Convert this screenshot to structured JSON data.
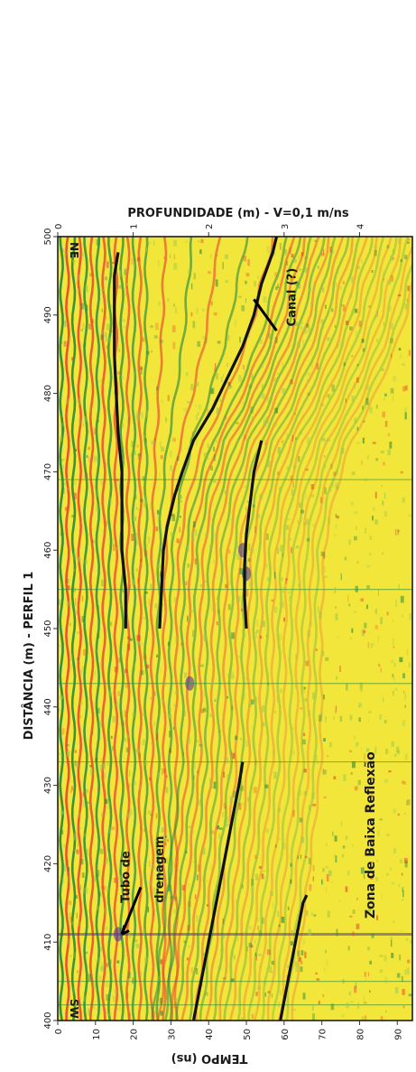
{
  "chart_data": {
    "type": "heatmap",
    "title": "PROFUNDIDADE (m) - V=0,1 m/ns",
    "depth_axis": {
      "label": "PROFUNDIDADE (m) - V=0,1 m/ns",
      "ticks": [
        "0",
        "1",
        "2",
        "3",
        "4"
      ],
      "range": [
        0,
        4.7
      ]
    },
    "distance_axis": {
      "label": "DISTÂNCIA (m) - PERFIL 1",
      "ticks": [
        "400",
        "410",
        "420",
        "430",
        "440",
        "450",
        "460",
        "470",
        "480",
        "490",
        "500"
      ],
      "range": [
        400,
        500
      ]
    },
    "time_axis": {
      "label": "TEMPO (ns)",
      "ticks": [
        "0",
        "10",
        "20",
        "30",
        "40",
        "50",
        "60",
        "70",
        "80",
        "90"
      ],
      "range": [
        0,
        94
      ]
    },
    "ends": {
      "start": "SW",
      "end": "NE"
    },
    "annotations": {
      "canal": "Canal (?)",
      "tubo_line1": "Tubo de",
      "tubo_line2": "drenagem",
      "zona": "Zona de Baixa Reflexão"
    },
    "interpreted_horizons": [
      {
        "name": "h1",
        "points": [
          [
            450,
            18
          ],
          [
            455,
            18
          ],
          [
            460,
            17
          ],
          [
            465,
            17
          ],
          [
            470,
            17
          ],
          [
            475,
            16
          ],
          [
            480,
            15.5
          ],
          [
            485,
            15
          ],
          [
            490,
            15
          ],
          [
            495,
            15
          ],
          [
            498,
            16
          ]
        ]
      },
      {
        "name": "h2",
        "points": [
          [
            450,
            27
          ],
          [
            455,
            27.5
          ],
          [
            460,
            28
          ],
          [
            463,
            29
          ],
          [
            467,
            31
          ],
          [
            470,
            33
          ],
          [
            474,
            36
          ],
          [
            478,
            41
          ],
          [
            482,
            45
          ],
          [
            486,
            49
          ],
          [
            490,
            52
          ],
          [
            494,
            54
          ],
          [
            498,
            57
          ],
          [
            500,
            58
          ]
        ]
      },
      {
        "name": "h3",
        "points": [
          [
            450,
            50
          ],
          [
            454,
            49.5
          ],
          [
            458,
            49.5
          ],
          [
            462,
            50
          ],
          [
            466,
            51
          ],
          [
            470,
            52
          ],
          [
            474,
            54
          ]
        ]
      },
      {
        "name": "h4",
        "points": [
          [
            400,
            36
          ],
          [
            405,
            38
          ],
          [
            410,
            40
          ],
          [
            415,
            42
          ],
          [
            420,
            44
          ],
          [
            425,
            46
          ],
          [
            430,
            48
          ],
          [
            433,
            49
          ]
        ]
      },
      {
        "name": "h5",
        "points": [
          [
            400,
            59
          ],
          [
            405,
            61
          ],
          [
            410,
            63
          ],
          [
            415,
            65
          ],
          [
            416,
            66
          ]
        ]
      }
    ],
    "colormap": [
      "#2a8a3a",
      "#9cc94a",
      "#f2e63a",
      "#e8472e",
      "#4a3a9a"
    ],
    "frame_color": "#111111"
  }
}
